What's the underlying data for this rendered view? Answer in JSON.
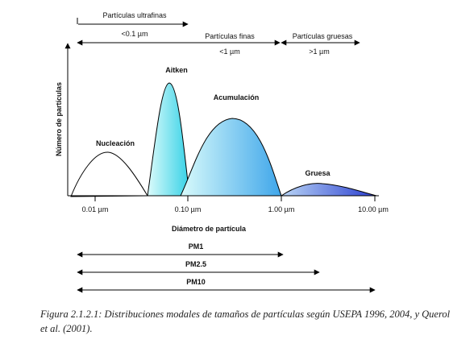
{
  "diagram": {
    "top_ranges": [
      {
        "name": "Partículas ultrafinas",
        "size": "<0.1 µm"
      },
      {
        "name": "Partículas finas",
        "size": "<1 µm"
      },
      {
        "name": "Partículas gruesas",
        "size": ">1 µm"
      }
    ],
    "y_axis_label": "Número de partículas",
    "x_axis_label": "Diámetro de partícula",
    "x_ticks": [
      "0.01 µm",
      "0.10 µm",
      "1.00 µm",
      "10.00 µm"
    ],
    "modes": [
      {
        "label": "Nucleación"
      },
      {
        "label": "Aitken"
      },
      {
        "label": "Acumulación"
      },
      {
        "label": "Gruesa"
      }
    ],
    "pm_ranges": [
      "PM1",
      "PM2.5",
      "PM10"
    ]
  },
  "caption": "Figura 2.1.2.1: Distribuciones modales de tamaños de partículas según USEPA 1996, 2004, y Querol et al. (2001).",
  "colors": {
    "nucleation_fill": "#ffffff",
    "aitken_gradient": [
      "#dcfbfb",
      "#34d1e6"
    ],
    "accumulation_gradient": [
      "#d9fbfb",
      "#3fa6ea"
    ],
    "coarse_gradient": [
      "#b9d5f5",
      "#2a3ed0"
    ]
  }
}
